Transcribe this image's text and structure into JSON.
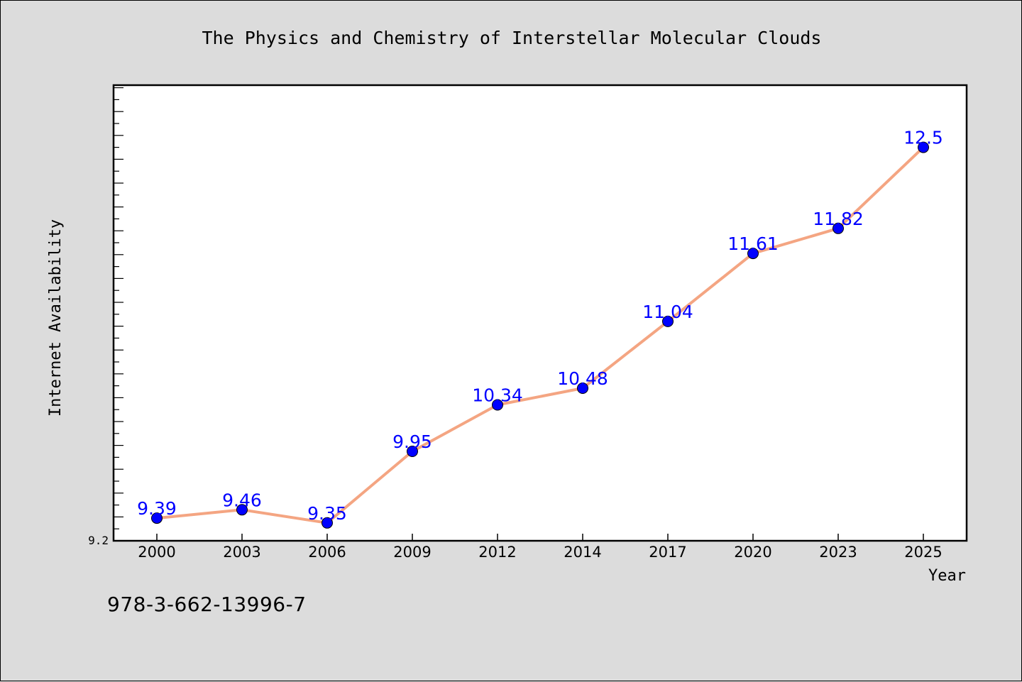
{
  "chart_data": {
    "type": "line",
    "title": "The Physics and Chemistry of Interstellar Molecular Clouds",
    "xlabel": "Year",
    "ylabel": "Internet Availability",
    "categories": [
      "2000",
      "2003",
      "2006",
      "2009",
      "2012",
      "2014",
      "2017",
      "2020",
      "2023",
      "2025"
    ],
    "series": [
      {
        "values": [
          9.39,
          9.46,
          9.35,
          9.95,
          10.34,
          10.48,
          11.04,
          11.61,
          11.82,
          12.5
        ],
        "labels": [
          "9.39",
          "9.46",
          "9.35",
          "9.95",
          "10.34",
          "10.48",
          "11.04",
          "11.61",
          "11.82",
          "12.5"
        ],
        "line_color": "#f4a582",
        "marker_color": "#0000ff",
        "label_color": "#0000ff"
      }
    ],
    "y_tick_label": "9.2",
    "ylim": [
      9.2,
      13.0
    ],
    "grid": false,
    "legend": "none"
  },
  "footer": {
    "isbn": "978-3-662-13996-7"
  },
  "colors": {
    "background": "#dcdcdc",
    "plot_background": "#ffffff"
  }
}
